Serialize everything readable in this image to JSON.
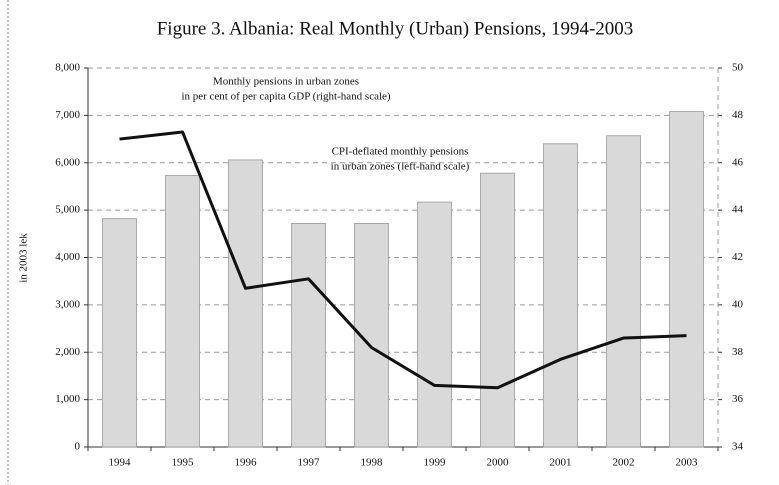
{
  "chart_data": {
    "type": "bar_line",
    "title": "Figure 3. Albania: Real Monthly (Urban) Pensions, 1994-2003",
    "ylabel": "in 2003 lek",
    "categories": [
      "1994",
      "1995",
      "1996",
      "1997",
      "1998",
      "1999",
      "2000",
      "2001",
      "2002",
      "2003"
    ],
    "series": [
      {
        "type": "bar",
        "color": "#d9d9d9",
        "values": [
          4820,
          5730,
          6060,
          4720,
          4720,
          5170,
          5780,
          6400,
          6570,
          7080
        ]
      },
      {
        "type": "line",
        "axis": "y2",
        "color": "#111111",
        "values": [
          47.0,
          47.3,
          40.7,
          41.1,
          38.2,
          36.6,
          36.5,
          37.7,
          38.6,
          38.7
        ]
      }
    ],
    "annotations": [
      [
        "Monthly pensions in urban zones",
        "in per cent of per capita GDP  (right-hand scale)"
      ],
      [
        "CPI-deflated monthly pensions",
        "in urban zones  (left-hand scale)"
      ]
    ],
    "ylim": [
      0,
      8000
    ],
    "yticks": [
      0,
      {
        "value": 1000,
        "label": "1,000"
      },
      {
        "value": 2000,
        "label": "2,000"
      },
      {
        "value": 3000,
        "label": "3,000"
      },
      {
        "value": 4000,
        "label": "4,000"
      },
      {
        "value": 5000,
        "label": "5,000"
      },
      {
        "value": 6000,
        "label": "6,000"
      },
      {
        "value": 7000,
        "label": "7,000"
      },
      {
        "value": 8000,
        "label": "8,000"
      }
    ],
    "y2lim": [
      34,
      50
    ],
    "y2ticks": [
      34,
      36,
      38,
      40,
      42,
      44,
      46,
      48,
      50
    ],
    "grid": true
  }
}
